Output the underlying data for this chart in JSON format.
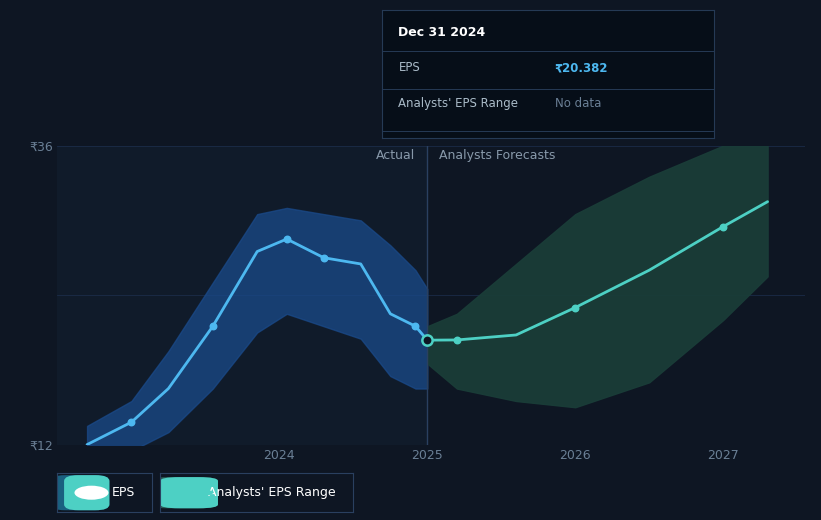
{
  "bg_color": "#0e1623",
  "plot_bg_color": "#0e1623",
  "grid_color": "#1e3050",
  "y_min": 12,
  "y_max": 36,
  "divider_x": 2025.0,
  "actual_label": "Actual",
  "forecast_label": "Analysts Forecasts",
  "eps_line_color": "#4db8f0",
  "eps_band_color": "#1a4a8a",
  "forecast_line_color": "#4dd0c4",
  "forecast_band_color": "#1a3d38",
  "y_tick_labels": [
    "₹12",
    "₹36"
  ],
  "y_tick_vals": [
    12,
    36
  ],
  "x_ticks": [
    2024,
    2025,
    2026,
    2027
  ],
  "tooltip_bg": "#060e18",
  "tooltip_border": "#253a55",
  "tooltip_title": "Dec 31 2024",
  "tooltip_eps_label": "EPS",
  "tooltip_eps_value": "₹20.382",
  "tooltip_eps_color": "#4db8f0",
  "tooltip_range_label": "Analysts' EPS Range",
  "tooltip_range_value": "No data",
  "tooltip_range_color": "#6a7f95",
  "legend_eps_label": "EPS",
  "legend_range_label": "Analysts' EPS Range",
  "actual_x": [
    2022.7,
    2023.0,
    2023.25,
    2023.55,
    2023.85,
    2024.05,
    2024.3,
    2024.55,
    2024.75,
    2024.92,
    2025.0
  ],
  "actual_y": [
    12.0,
    13.8,
    16.5,
    21.5,
    27.5,
    28.5,
    27.0,
    26.5,
    22.5,
    21.5,
    20.382
  ],
  "actual_band_upper": [
    13.5,
    15.5,
    19.5,
    25.0,
    30.5,
    31.0,
    30.5,
    30.0,
    28.0,
    26.0,
    24.5
  ],
  "actual_band_lower": [
    10.0,
    11.5,
    13.0,
    16.5,
    21.0,
    22.5,
    21.5,
    20.5,
    17.5,
    16.5,
    16.5
  ],
  "forecast_x": [
    2025.0,
    2025.2,
    2025.6,
    2026.0,
    2026.5,
    2027.0,
    2027.3
  ],
  "forecast_y": [
    20.382,
    20.4,
    20.8,
    23.0,
    26.0,
    29.5,
    31.5
  ],
  "forecast_band_upper": [
    21.5,
    22.5,
    26.5,
    30.5,
    33.5,
    36.0,
    37.5
  ],
  "forecast_band_lower": [
    18.5,
    16.5,
    15.5,
    15.0,
    17.0,
    22.0,
    25.5
  ]
}
